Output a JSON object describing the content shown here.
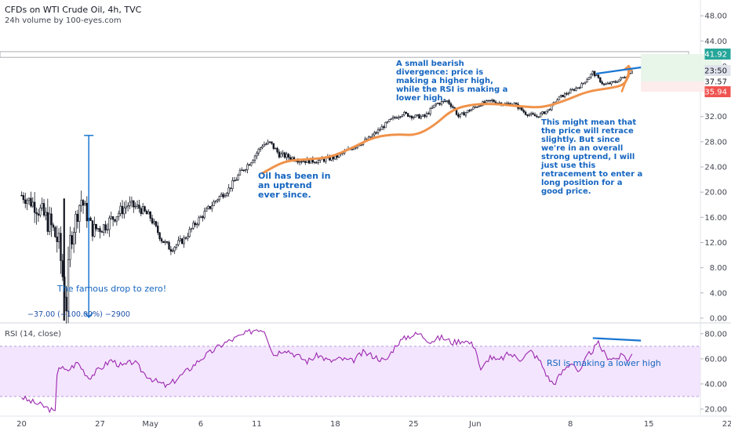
{
  "header": {
    "title": "CFDs on WTI Crude Oil, 4h, TVC",
    "volume": "24h volume by 100-eyes.com",
    "rsi_label": "RSI (14, close)"
  },
  "annotations": {
    "drop": "The famous drop to zero!",
    "measure": "−37.00 (−100.00%) −2900",
    "uptrend": "Oil has been in an uptrend ever since.",
    "divergence": "A small bearish divergence: price is making a higher high, while the RSI is making a lower high.",
    "retrace": "This might mean that the price will retrace slightly. But since we're in an overall strong uptrend, I will just use this retracement to enter a long position for a good price.",
    "rsi_note": "RSI is making a lower high"
  },
  "price_tags": [
    {
      "label": "41.92",
      "value": 41.92,
      "color": "#26a69a"
    },
    {
      "label": "23:50",
      "value": 39.3,
      "color": "#e0e3eb"
    },
    {
      "label": "37.57",
      "value": 37.57,
      "color": "#ffffff"
    },
    {
      "label": "35.94",
      "value": 35.94,
      "color": "#ef5350"
    }
  ],
  "chart_data": [
    {
      "type": "candlestick",
      "title": "CFDs on WTI Crude Oil, 4h, TVC",
      "x_ticks": [
        "20",
        "27",
        "May",
        "6",
        "11",
        "18",
        "25",
        "Jun",
        "8",
        "15",
        "22"
      ],
      "y_ticks": [
        "48.00",
        "44.00",
        "40.00",
        "36.00",
        "32.00",
        "28.00",
        "24.00",
        "20.00",
        "16.00",
        "12.00",
        "8.00",
        "4.00",
        "0.00"
      ],
      "ylim": [
        -0.5,
        50.5
      ],
      "close_path": [
        {
          "x": 0.0,
          "y": 19.5
        },
        {
          "x": 1.2,
          "y": 18.0
        },
        {
          "x": 2.5,
          "y": 15.0
        },
        {
          "x": 3.3,
          "y": 12.0
        },
        {
          "x": 4.0,
          "y": 2.0
        },
        {
          "x": 4.3,
          "y": 12.0
        },
        {
          "x": 5.3,
          "y": 19.0
        },
        {
          "x": 6.3,
          "y": 14.0
        },
        {
          "x": 7.3,
          "y": 14.5
        },
        {
          "x": 8.5,
          "y": 16.5
        },
        {
          "x": 9.5,
          "y": 18.0
        },
        {
          "x": 10.5,
          "y": 17.5
        },
        {
          "x": 11.5,
          "y": 16.0
        },
        {
          "x": 12.5,
          "y": 12.5
        },
        {
          "x": 13.3,
          "y": 11.0
        },
        {
          "x": 14.5,
          "y": 12.5
        },
        {
          "x": 15.5,
          "y": 15.0
        },
        {
          "x": 16.5,
          "y": 17.0
        },
        {
          "x": 17.5,
          "y": 19.0
        },
        {
          "x": 18.5,
          "y": 20.5
        },
        {
          "x": 19.5,
          "y": 23.0
        },
        {
          "x": 20.5,
          "y": 25.0
        },
        {
          "x": 21.5,
          "y": 27.5
        },
        {
          "x": 22.2,
          "y": 27.8
        },
        {
          "x": 23.0,
          "y": 26.0
        },
        {
          "x": 24.0,
          "y": 25.5
        },
        {
          "x": 25.0,
          "y": 25.0
        },
        {
          "x": 26.5,
          "y": 25.0
        },
        {
          "x": 28.0,
          "y": 25.5
        },
        {
          "x": 29.0,
          "y": 26.5
        },
        {
          "x": 30.0,
          "y": 27.5
        },
        {
          "x": 31.0,
          "y": 28.5
        },
        {
          "x": 32.0,
          "y": 30.0
        },
        {
          "x": 33.0,
          "y": 31.5
        },
        {
          "x": 34.0,
          "y": 32.5
        },
        {
          "x": 35.0,
          "y": 32.0
        },
        {
          "x": 36.0,
          "y": 32.0
        },
        {
          "x": 36.5,
          "y": 33.0
        },
        {
          "x": 37.0,
          "y": 34.0
        },
        {
          "x": 38.0,
          "y": 34.5
        },
        {
          "x": 38.5,
          "y": 33.5
        },
        {
          "x": 39.0,
          "y": 32.0
        },
        {
          "x": 40.0,
          "y": 33.0
        },
        {
          "x": 41.0,
          "y": 34.0
        },
        {
          "x": 42.0,
          "y": 34.5
        },
        {
          "x": 43.0,
          "y": 34.0
        },
        {
          "x": 44.0,
          "y": 34.0
        },
        {
          "x": 45.0,
          "y": 32.5
        },
        {
          "x": 46.0,
          "y": 32.0
        },
        {
          "x": 47.0,
          "y": 33.0
        },
        {
          "x": 48.0,
          "y": 35.0
        },
        {
          "x": 49.0,
          "y": 36.0
        },
        {
          "x": 50.0,
          "y": 37.0
        },
        {
          "x": 51.0,
          "y": 39.0
        },
        {
          "x": 52.0,
          "y": 37.0
        },
        {
          "x": 53.0,
          "y": 37.5
        },
        {
          "x": 54.0,
          "y": 38.5
        },
        {
          "x": 54.6,
          "y": 39.5
        }
      ],
      "volatility": [
        {
          "x": 0.0,
          "y": 1.8
        },
        {
          "x": 3.0,
          "y": 4.5
        },
        {
          "x": 6.0,
          "y": 2.5
        },
        {
          "x": 12.0,
          "y": 1.2
        },
        {
          "x": 20.0,
          "y": 1.0
        },
        {
          "x": 30.0,
          "y": 0.7
        },
        {
          "x": 40.0,
          "y": 0.6
        },
        {
          "x": 54.6,
          "y": 0.5
        }
      ],
      "big_drop_wick": {
        "x": 3.8,
        "high": 19.0,
        "low": -0.4
      },
      "measure_arrow": {
        "x": 6.0,
        "from": 29.0,
        "to": 0.0
      },
      "trend_curve": [
        {
          "x": 21.5,
          "y": 23.0
        },
        {
          "x": 23.5,
          "y": 25.0
        },
        {
          "x": 25.5,
          "y": 25.2
        },
        {
          "x": 27.5,
          "y": 25.5
        },
        {
          "x": 29.5,
          "y": 27.0
        },
        {
          "x": 31.5,
          "y": 28.8
        },
        {
          "x": 33.5,
          "y": 29.2
        },
        {
          "x": 35.2,
          "y": 29.0
        },
        {
          "x": 36.8,
          "y": 30.5
        },
        {
          "x": 38.5,
          "y": 33.2
        },
        {
          "x": 40.5,
          "y": 34.0
        },
        {
          "x": 42.5,
          "y": 34.0
        },
        {
          "x": 44.5,
          "y": 33.6
        },
        {
          "x": 46.5,
          "y": 33.4
        },
        {
          "x": 48.5,
          "y": 34.5
        },
        {
          "x": 50.5,
          "y": 36.0
        },
        {
          "x": 52.5,
          "y": 36.5
        },
        {
          "x": 53.8,
          "y": 37.0
        },
        {
          "x": 54.2,
          "y": 38.5
        }
      ],
      "trend_arrow_end": {
        "x": 54.2,
        "y": 40.0
      },
      "divergence_line": {
        "x1": 51.3,
        "y1": 38.8,
        "x2": 55.3,
        "y2": 39.8
      },
      "orange_spike": {
        "x1": 53.6,
        "y1": 36.0,
        "x2": 54.3,
        "y2": 39.3
      },
      "target_zone": {
        "x1": 55.3,
        "x2": 62.5,
        "top": 41.92,
        "entry": 37.57,
        "stop": 35.94,
        "profit_color": "#e8f5e9",
        "loss_color": "#fdecec"
      },
      "horizontal_band": {
        "top": 42.3,
        "bottom": 41.4
      }
    },
    {
      "type": "line",
      "title": "RSI (14, close)",
      "y_ticks": [
        "80.00",
        "60.00",
        "40.00",
        "20.00"
      ],
      "ylim": [
        15,
        88
      ],
      "band": [
        30,
        70
      ],
      "band_color": "#f3e5fd",
      "series": [
        {
          "color": "#9c27b0",
          "values": [
            {
              "x": 0.0,
              "y": 30.0
            },
            {
              "x": 0.5,
              "y": 27.0
            },
            {
              "x": 1.5,
              "y": 24.0
            },
            {
              "x": 2.5,
              "y": 20.0
            },
            {
              "x": 3.0,
              "y": 17.0
            },
            {
              "x": 3.2,
              "y": 55.0
            },
            {
              "x": 4.0,
              "y": 50.0
            },
            {
              "x": 5.0,
              "y": 57.0
            },
            {
              "x": 6.0,
              "y": 45.0
            },
            {
              "x": 7.0,
              "y": 52.0
            },
            {
              "x": 8.0,
              "y": 59.0
            },
            {
              "x": 9.0,
              "y": 54.0
            },
            {
              "x": 10.0,
              "y": 58.0
            },
            {
              "x": 11.0,
              "y": 48.0
            },
            {
              "x": 12.0,
              "y": 42.0
            },
            {
              "x": 13.0,
              "y": 38.0
            },
            {
              "x": 14.0,
              "y": 45.0
            },
            {
              "x": 15.0,
              "y": 52.0
            },
            {
              "x": 16.0,
              "y": 60.0
            },
            {
              "x": 17.0,
              "y": 66.0
            },
            {
              "x": 18.0,
              "y": 72.0
            },
            {
              "x": 19.0,
              "y": 76.0
            },
            {
              "x": 20.0,
              "y": 80.0
            },
            {
              "x": 21.0,
              "y": 84.0
            },
            {
              "x": 21.7,
              "y": 83.0
            },
            {
              "x": 22.5,
              "y": 63.0
            },
            {
              "x": 23.5,
              "y": 68.0
            },
            {
              "x": 24.5,
              "y": 63.0
            },
            {
              "x": 25.5,
              "y": 58.0
            },
            {
              "x": 26.5,
              "y": 63.0
            },
            {
              "x": 27.5,
              "y": 58.0
            },
            {
              "x": 28.5,
              "y": 60.0
            },
            {
              "x": 29.5,
              "y": 58.0
            },
            {
              "x": 30.5,
              "y": 65.0
            },
            {
              "x": 31.5,
              "y": 62.0
            },
            {
              "x": 32.5,
              "y": 58.0
            },
            {
              "x": 33.5,
              "y": 72.0
            },
            {
              "x": 34.5,
              "y": 78.0
            },
            {
              "x": 35.5,
              "y": 80.0
            },
            {
              "x": 36.5,
              "y": 74.0
            },
            {
              "x": 37.5,
              "y": 77.0
            },
            {
              "x": 38.5,
              "y": 73.0
            },
            {
              "x": 39.5,
              "y": 75.0
            },
            {
              "x": 40.5,
              "y": 70.0
            },
            {
              "x": 41.0,
              "y": 50.0
            },
            {
              "x": 41.8,
              "y": 62.0
            },
            {
              "x": 42.5,
              "y": 58.0
            },
            {
              "x": 43.5,
              "y": 64.0
            },
            {
              "x": 44.5,
              "y": 60.0
            },
            {
              "x": 45.5,
              "y": 66.0
            },
            {
              "x": 46.3,
              "y": 58.0
            },
            {
              "x": 47.0,
              "y": 45.0
            },
            {
              "x": 47.5,
              "y": 40.0
            },
            {
              "x": 48.5,
              "y": 52.0
            },
            {
              "x": 49.2,
              "y": 58.0
            },
            {
              "x": 49.8,
              "y": 48.0
            },
            {
              "x": 50.5,
              "y": 62.0
            },
            {
              "x": 51.0,
              "y": 67.0
            },
            {
              "x": 51.5,
              "y": 72.0
            },
            {
              "x": 52.2,
              "y": 62.0
            },
            {
              "x": 53.0,
              "y": 60.0
            },
            {
              "x": 53.8,
              "y": 63.0
            },
            {
              "x": 54.2,
              "y": 58.0
            },
            {
              "x": 54.6,
              "y": 66.0
            }
          ]
        }
      ],
      "divergence_line": {
        "x1": 51.0,
        "y1": 76.5,
        "x2": 55.3,
        "y2": 74.5
      }
    }
  ]
}
